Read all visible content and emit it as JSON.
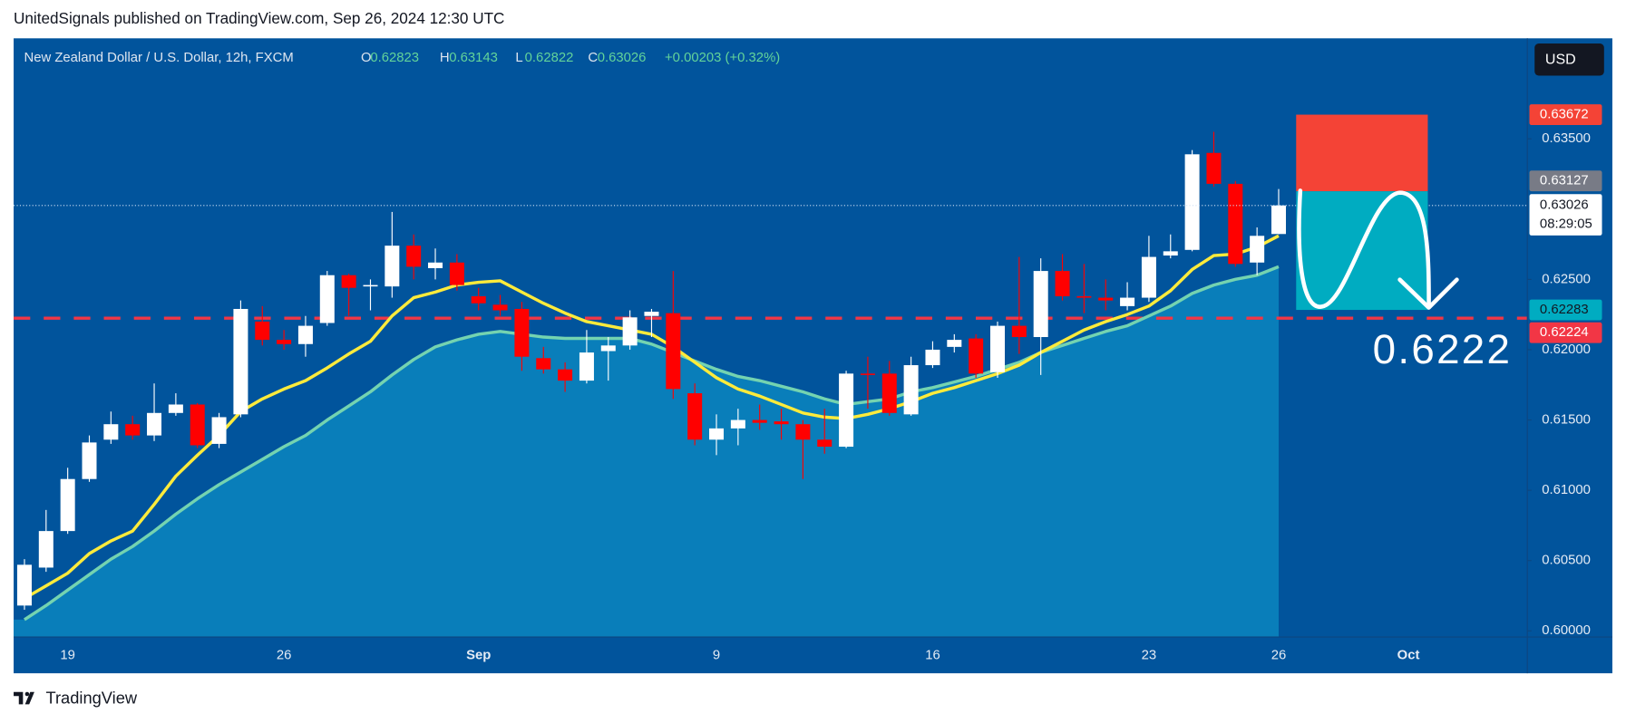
{
  "published": "UnitedSignals published on TradingView.com, Sep 26, 2024 12:30 UTC",
  "brand": "TradingView",
  "chart_data": {
    "type": "candlestick",
    "title": "New Zealand Dollar / U.S. Dollar, 12h, FXCM",
    "ohlc_labels": [
      "O",
      "H",
      "L",
      "C"
    ],
    "change": "+0.00203 (+0.32%)",
    "currency": "USD",
    "countdown": "08:29:05",
    "categories": [
      null,
      null,
      "19",
      null,
      null,
      null,
      null,
      null,
      null,
      null,
      null,
      null,
      "26",
      null,
      null,
      null,
      null,
      null,
      null,
      null,
      null,
      "Sep",
      null,
      null,
      null,
      null,
      null,
      null,
      null,
      null,
      null,
      null,
      "9",
      null,
      null,
      null,
      null,
      null,
      null,
      null,
      null,
      null,
      "16",
      null,
      null,
      null,
      null,
      null,
      null,
      null,
      null,
      null,
      "23",
      null,
      null,
      null,
      null,
      null,
      "26",
      null,
      null,
      null,
      null,
      null,
      "Oct",
      null,
      null,
      null,
      null,
      null
    ],
    "open": [
      0.6018,
      0.6045,
      0.6071,
      0.6108,
      0.6136,
      0.6147,
      0.6139,
      0.6155,
      0.6161,
      0.6133,
      0.6154,
      0.622,
      0.6207,
      0.6204,
      0.6219,
      0.6253,
      0.6245,
      0.6245,
      0.6274,
      0.6258,
      0.6262,
      0.6238,
      0.6232,
      0.6229,
      0.6194,
      0.6186,
      0.6178,
      0.6199,
      0.6203,
      0.6224,
      0.6226,
      0.6169,
      0.6136,
      0.6144,
      0.615,
      0.6149,
      0.6147,
      0.6136,
      0.6131,
      0.6183,
      0.6183,
      0.6154,
      0.6189,
      0.6202,
      0.6208,
      0.6184,
      0.6217,
      0.6209,
      0.6256,
      0.6238,
      0.6237,
      0.6231,
      0.6237,
      0.6267,
      0.6271,
      0.634,
      0.6318,
      0.6262,
      0.62823,
      null,
      null,
      null,
      null,
      null,
      null,
      null,
      null,
      null,
      null,
      null
    ],
    "high": [
      0.6051,
      0.6086,
      0.6116,
      0.6139,
      0.6156,
      0.6153,
      0.6176,
      0.6169,
      0.6162,
      0.6155,
      0.6235,
      0.6231,
      0.6214,
      0.6224,
      0.6256,
      0.6254,
      0.625,
      0.6298,
      0.6282,
      0.6272,
      0.6268,
      0.6244,
      0.6239,
      0.6234,
      0.6202,
      0.6191,
      0.6214,
      0.6209,
      0.6228,
      0.6229,
      0.6256,
      0.6176,
      0.6154,
      0.6158,
      0.6161,
      0.6158,
      0.615,
      0.6158,
      0.6185,
      0.6195,
      0.6192,
      0.6195,
      0.6206,
      0.6211,
      0.6211,
      0.622,
      0.6266,
      0.6265,
      0.6268,
      0.6261,
      0.625,
      0.6248,
      0.6281,
      0.6282,
      0.6342,
      0.6355,
      0.632,
      0.6287,
      0.63143,
      null,
      null,
      null,
      null,
      null,
      null,
      null,
      null,
      null,
      null,
      null
    ],
    "low": [
      0.6015,
      0.6042,
      0.6069,
      0.6106,
      0.6133,
      0.6136,
      0.6135,
      0.6153,
      0.613,
      0.613,
      0.6152,
      0.6203,
      0.62,
      0.6195,
      0.6217,
      0.6224,
      0.6228,
      0.6237,
      0.625,
      0.625,
      0.6242,
      0.6228,
      0.6224,
      0.6185,
      0.6183,
      0.617,
      0.6176,
      0.6178,
      0.62,
      0.6209,
      0.6165,
      0.6132,
      0.6125,
      0.6132,
      0.6143,
      0.6136,
      0.6108,
      0.6126,
      0.613,
      0.6158,
      0.6153,
      0.6153,
      0.6187,
      0.6198,
      0.618,
      0.618,
      0.6197,
      0.6182,
      0.6235,
      0.6226,
      0.6228,
      0.6228,
      0.6234,
      0.6265,
      0.627,
      0.6316,
      0.6259,
      0.6253,
      0.62822,
      null,
      null,
      null,
      null,
      null,
      null,
      null,
      null,
      null,
      null,
      null
    ],
    "close": [
      0.6047,
      0.6071,
      0.6108,
      0.6134,
      0.6147,
      0.6139,
      0.6155,
      0.6161,
      0.6132,
      0.6152,
      0.6229,
      0.6207,
      0.6204,
      0.6217,
      0.6253,
      0.6244,
      0.6246,
      0.6274,
      0.6259,
      0.6262,
      0.6246,
      0.6233,
      0.6228,
      0.6195,
      0.6186,
      0.6178,
      0.6198,
      0.6203,
      0.6223,
      0.6227,
      0.6172,
      0.6136,
      0.6144,
      0.615,
      0.6148,
      0.6147,
      0.6136,
      0.6131,
      0.6183,
      0.6182,
      0.6155,
      0.6189,
      0.62,
      0.6207,
      0.6183,
      0.6217,
      0.6209,
      0.6256,
      0.6238,
      0.6237,
      0.6235,
      0.6237,
      0.6266,
      0.627,
      0.6339,
      0.6318,
      0.6261,
      0.6281,
      0.63026,
      null,
      null,
      null,
      null,
      null,
      null,
      null,
      null,
      null,
      null,
      null
    ],
    "up_color": "#ffffff",
    "down_color": "#ff0000",
    "lines": [
      {
        "color": "#74d3b0",
        "fill": "#0a86bf",
        "values": [
          0.6008,
          0.6018,
          0.6029,
          0.604,
          0.6051,
          0.606,
          0.6071,
          0.6083,
          0.6094,
          0.6104,
          0.6113,
          0.6122,
          0.6131,
          0.6139,
          0.615,
          0.616,
          0.617,
          0.6182,
          0.6193,
          0.6202,
          0.6207,
          0.6211,
          0.6213,
          0.6211,
          0.6209,
          0.6208,
          0.6208,
          0.6208,
          0.6208,
          0.6204,
          0.6198,
          0.6192,
          0.6186,
          0.6181,
          0.6178,
          0.6174,
          0.617,
          0.6165,
          0.6161,
          0.6163,
          0.6165,
          0.617,
          0.6173,
          0.6177,
          0.6181,
          0.6186,
          0.6191,
          0.6198,
          0.6203,
          0.6208,
          0.6213,
          0.6217,
          0.6224,
          0.6231,
          0.624,
          0.6246,
          0.625,
          0.6253,
          0.6259,
          null,
          null,
          null,
          null,
          null,
          null,
          null,
          null,
          null,
          null,
          null
        ]
      },
      {
        "color": "#ffeb3b",
        "values": [
          0.6023,
          0.6032,
          0.6041,
          0.6055,
          0.6064,
          0.6071,
          0.609,
          0.611,
          0.6125,
          0.6139,
          0.6156,
          0.6165,
          0.6172,
          0.6178,
          0.6187,
          0.6197,
          0.6206,
          0.6224,
          0.6237,
          0.6241,
          0.6246,
          0.6248,
          0.6249,
          0.6241,
          0.6233,
          0.6226,
          0.622,
          0.6217,
          0.6214,
          0.6211,
          0.6202,
          0.6191,
          0.618,
          0.6172,
          0.6167,
          0.6161,
          0.6155,
          0.6152,
          0.6151,
          0.6154,
          0.6158,
          0.6163,
          0.6169,
          0.6173,
          0.6178,
          0.6183,
          0.6189,
          0.6198,
          0.6206,
          0.6214,
          0.622,
          0.6225,
          0.6231,
          0.6242,
          0.6257,
          0.6267,
          0.6268,
          0.6273,
          0.6281,
          null,
          null,
          null,
          null,
          null,
          null,
          null,
          null,
          null,
          null,
          null
        ]
      }
    ],
    "position": {
      "stop": 0.63672,
      "entry": 0.63127,
      "target": 0.62283,
      "stop_color": "#f44336",
      "target_color": "#00acc1"
    },
    "level": {
      "value": 0.62224,
      "label": "0.6222",
      "color": "#f23645"
    },
    "ylim": [
      0.59956,
      0.64215
    ],
    "yticks": [
      {
        "value": 0.6,
        "label": "0.60000"
      },
      {
        "value": 0.605,
        "label": "0.60500"
      },
      {
        "value": 0.61,
        "label": "0.61000"
      },
      {
        "value": 0.615,
        "label": "0.61500"
      },
      {
        "value": 0.62,
        "label": "0.62000"
      },
      {
        "value": 0.625,
        "label": "0.62500"
      },
      {
        "value": 0.635,
        "label": "0.63500"
      }
    ],
    "grid": false
  }
}
